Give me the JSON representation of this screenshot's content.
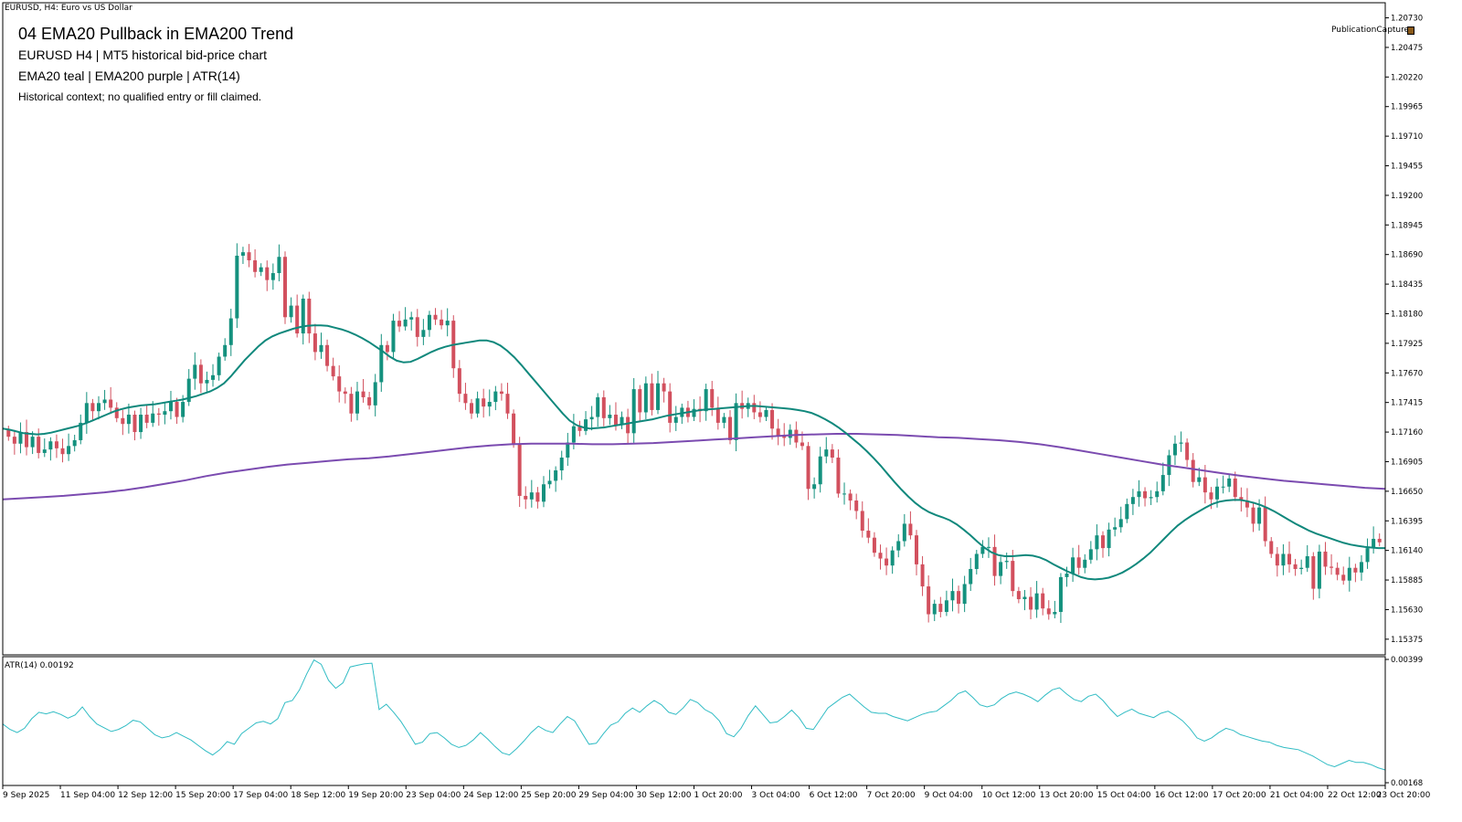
{
  "window": {
    "title": "EURUSD, H4:  Euro vs US Dollar"
  },
  "annotations": {
    "title": "04  EMA20 Pullback in EMA200 Trend",
    "subtitle": "EURUSD  H4  |  MT5 historical bid-price chart",
    "legend": "EMA20 teal | EMA200 purple | ATR(14)",
    "note": "Historical context; no qualified entry or fill claimed."
  },
  "publication": {
    "label": "PublicationCapture",
    "icon": "capture-icon"
  },
  "colors": {
    "bull": "#14917e",
    "bear": "#d2505e",
    "ema20": "#10887c",
    "ema200": "#7b4bb0",
    "atr": "#30bcc4"
  },
  "chart_data": [
    {
      "type": "candlestick",
      "symbol": "EURUSD",
      "timeframe": "H4",
      "ylim": [
        1.1524,
        1.2086
      ],
      "y_ticks": [
        "1.20730",
        "1.20475",
        "1.20220",
        "1.19965",
        "1.19710",
        "1.19455",
        "1.19200",
        "1.18945",
        "1.18690",
        "1.18435",
        "1.18180",
        "1.17925",
        "1.17670",
        "1.17415",
        "1.17160",
        "1.16905",
        "1.16650",
        "1.16395",
        "1.16140",
        "1.15885",
        "1.15630",
        "1.15375"
      ],
      "x_ticks": [
        "9 Sep 2025",
        "11 Sep 04:00",
        "12 Sep 12:00",
        "15 Sep 20:00",
        "17 Sep 04:00",
        "18 Sep 12:00",
        "19 Sep 20:00",
        "23 Sep 04:00",
        "24 Sep 12:00",
        "25 Sep 20:00",
        "29 Sep 04:00",
        "30 Sep 12:00",
        "1 Oct 20:00",
        "3 Oct 04:00",
        "6 Oct 12:00",
        "7 Oct 20:00",
        "9 Oct 04:00",
        "10 Oct 12:00",
        "13 Oct 20:00",
        "15 Oct 04:00",
        "16 Oct 12:00",
        "17 Oct 20:00",
        "21 Oct 04:00",
        "22 Oct 12:00",
        "23 Oct 20:00"
      ],
      "candle_spacing_bars": 4,
      "closes": [
        1.1712,
        1.1706,
        1.1716,
        1.1703,
        1.1712,
        1.1698,
        1.1701,
        1.1708,
        1.1702,
        1.1697,
        1.1704,
        1.1709,
        1.1724,
        1.1741,
        1.1734,
        1.1741,
        1.1744,
        1.1737,
        1.1728,
        1.1723,
        1.1731,
        1.1716,
        1.1731,
        1.1724,
        1.1732,
        1.1731,
        1.1734,
        1.1742,
        1.1729,
        1.1742,
        1.1762,
        1.1774,
        1.1758,
        1.1761,
        1.1765,
        1.1781,
        1.1791,
        1.1814,
        1.1868,
        1.1871,
        1.1864,
        1.1854,
        1.1858,
        1.1847,
        1.1853,
        1.1867,
        1.1815,
        1.1825,
        1.1801,
        1.1831,
        1.1801,
        1.1785,
        1.1791,
        1.1773,
        1.1764,
        1.1751,
        1.1749,
        1.1732,
        1.1751,
        1.1746,
        1.1739,
        1.1759,
        1.1791,
        1.1785,
        1.1812,
        1.1807,
        1.1813,
        1.1815,
        1.1798,
        1.1804,
        1.1817,
        1.1813,
        1.1808,
        1.1812,
        1.1771,
        1.1749,
        1.1741,
        1.1732,
        1.1745,
        1.1738,
        1.1742,
        1.1751,
        1.1749,
        1.1732,
        1.1706,
        1.1661,
        1.1658,
        1.1664,
        1.1656,
        1.1671,
        1.1674,
        1.1683,
        1.1694,
        1.1707,
        1.1721,
        1.1717,
        1.1727,
        1.1729,
        1.1746,
        1.1728,
        1.1731,
        1.1722,
        1.1729,
        1.1715,
        1.1753,
        1.1733,
        1.1758,
        1.1735,
        1.1758,
        1.1751,
        1.1724,
        1.1729,
        1.1737,
        1.1729,
        1.1736,
        1.1734,
        1.1753,
        1.1737,
        1.1724,
        1.1729,
        1.1709,
        1.1741,
        1.1736,
        1.1741,
        1.1733,
        1.1729,
        1.1735,
        1.1719,
        1.1713,
        1.1711,
        1.1718,
        1.1707,
        1.1704,
        1.1667,
        1.1671,
        1.1695,
        1.1701,
        1.1694,
        1.1663,
        1.1663,
        1.1657,
        1.1648,
        1.1631,
        1.1625,
        1.1612,
        1.1607,
        1.1601,
        1.1614,
        1.1622,
        1.1637,
        1.1627,
        1.1602,
        1.1583,
        1.1559,
        1.1568,
        1.1561,
        1.1571,
        1.1579,
        1.1568,
        1.1585,
        1.1598,
        1.1611,
        1.1617,
        1.1617,
        1.1592,
        1.1604,
        1.1605,
        1.1579,
        1.1572,
        1.1574,
        1.1563,
        1.1577,
        1.1564,
        1.1559,
        1.1561,
        1.1591,
        1.1594,
        1.1608,
        1.1599,
        1.1606,
        1.1615,
        1.1627,
        1.1616,
        1.1632,
        1.1634,
        1.1641,
        1.1654,
        1.166,
        1.1665,
        1.1659,
        1.166,
        1.1665,
        1.1679,
        1.1696,
        1.1706,
        1.1707,
        1.1692,
        1.1673,
        1.1677,
        1.1664,
        1.1658,
        1.1669,
        1.1669,
        1.1676,
        1.166,
        1.1657,
        1.1651,
        1.1637,
        1.1651,
        1.1622,
        1.1611,
        1.1601,
        1.1611,
        1.1602,
        1.1598,
        1.1599,
        1.1609,
        1.1581,
        1.1613,
        1.16,
        1.1599,
        1.1593,
        1.1588,
        1.1599,
        1.1595,
        1.1604,
        1.1616,
        1.1624,
        1.1621
      ],
      "ema20_approx": [
        1.1719,
        1.1718,
        1.17165,
        1.1715,
        1.17145,
        1.1714,
        1.17145,
        1.17155,
        1.1717,
        1.17185,
        1.172,
        1.17215,
        1.17235,
        1.1726,
        1.17285,
        1.1731,
        1.17335,
        1.17355,
        1.1737,
        1.1738,
        1.1739,
        1.17395,
        1.174,
        1.1741,
        1.1742,
        1.1743,
        1.1744,
        1.17455,
        1.1747,
        1.1749,
        1.1751,
        1.1754,
        1.1758,
        1.1764,
        1.1771,
        1.1778,
        1.1784,
        1.179,
        1.1795,
        1.17985,
        1.1801,
        1.1803,
        1.1805,
        1.18065,
        1.18075,
        1.1808,
        1.1808,
        1.18075,
        1.1806,
        1.18045,
        1.18025,
        1.18,
        1.1797,
        1.17935,
        1.17895,
        1.17855,
        1.1781,
        1.17775,
        1.1776,
        1.17765,
        1.1779,
        1.1782,
        1.1785,
        1.17875,
        1.17895,
        1.1791,
        1.1792,
        1.1793,
        1.1794,
        1.1795,
        1.1795,
        1.17935,
        1.17905,
        1.1786,
        1.17805,
        1.1774,
        1.1767,
        1.176,
        1.1753,
        1.1746,
        1.1739,
        1.1732,
        1.1726,
        1.1722,
        1.172,
        1.1719,
        1.17195,
        1.172,
        1.1721,
        1.1722,
        1.1723,
        1.1724,
        1.1725,
        1.1726,
        1.1727,
        1.17285,
        1.173,
        1.1731,
        1.1732,
        1.1733,
        1.1734,
        1.1735,
        1.17355,
        1.1736,
        1.17365,
        1.1737,
        1.17375,
        1.1738,
        1.17385,
        1.17385,
        1.1738,
        1.17375,
        1.1737,
        1.17365,
        1.1736,
        1.1735,
        1.1734,
        1.17325,
        1.173,
        1.1727,
        1.17235,
        1.17195,
        1.1715,
        1.171,
        1.1705,
        1.16995,
        1.16935,
        1.1687,
        1.168,
        1.1673,
        1.16665,
        1.16605,
        1.1655,
        1.16505,
        1.1647,
        1.16445,
        1.16425,
        1.164,
        1.16365,
        1.1632,
        1.1627,
        1.16215,
        1.16165,
        1.16125,
        1.161,
        1.1609,
        1.1609,
        1.16095,
        1.161,
        1.16095,
        1.1608,
        1.16055,
        1.1602,
        1.1599,
        1.1596,
        1.15935,
        1.1591,
        1.15895,
        1.1589,
        1.15895,
        1.15905,
        1.15925,
        1.1595,
        1.15985,
        1.16025,
        1.1607,
        1.1612,
        1.1618,
        1.1624,
        1.163,
        1.16355,
        1.164,
        1.1644,
        1.16475,
        1.1651,
        1.1654,
        1.1656,
        1.1657,
        1.16575,
        1.16575,
        1.16565,
        1.1655,
        1.1653,
        1.16505,
        1.16475,
        1.1644,
        1.16405,
        1.1637,
        1.1634,
        1.1631,
        1.16285,
        1.16265,
        1.16245,
        1.16225,
        1.16205,
        1.1619,
        1.1618,
        1.1617,
        1.16165,
        1.1616,
        1.1616
      ],
      "ema200_approx": [
        1.1658,
        1.1659,
        1.166,
        1.1661,
        1.16625,
        1.1664,
        1.1666,
        1.16685,
        1.16715,
        1.16745,
        1.1678,
        1.1681,
        1.16835,
        1.1686,
        1.1688,
        1.16895,
        1.1691,
        1.16925,
        1.16935,
        1.1695,
        1.1697,
        1.1699,
        1.1701,
        1.1703,
        1.17045,
        1.17055,
        1.1706,
        1.1706,
        1.1706,
        1.17055,
        1.17055,
        1.1706,
        1.17065,
        1.17075,
        1.17085,
        1.17095,
        1.17105,
        1.17115,
        1.17125,
        1.17135,
        1.1714,
        1.17145,
        1.17145,
        1.1714,
        1.17135,
        1.17125,
        1.17115,
        1.1711,
        1.171,
        1.1709,
        1.17075,
        1.17055,
        1.1703,
        1.17,
        1.1697,
        1.1694,
        1.1691,
        1.1688,
        1.16855,
        1.1683,
        1.16805,
        1.1678,
        1.1676,
        1.1674,
        1.16725,
        1.1671,
        1.16695,
        1.1668,
        1.1667
      ]
    },
    {
      "type": "line",
      "name": "ATR(14)",
      "current_value": "0.00192",
      "ylim": [
        0.00168,
        0.00399
      ],
      "y_ticks": [
        "0.00399",
        "0.00168"
      ],
      "values": [
        0.00278,
        0.00268,
        0.00262,
        0.0027,
        0.00288,
        0.003,
        0.00297,
        0.00301,
        0.00296,
        0.00289,
        0.00295,
        0.0031,
        0.00292,
        0.00278,
        0.00271,
        0.00264,
        0.00268,
        0.00275,
        0.00285,
        0.00282,
        0.0027,
        0.00258,
        0.00252,
        0.00255,
        0.00262,
        0.00255,
        0.00248,
        0.00238,
        0.00228,
        0.0022,
        0.0023,
        0.00245,
        0.0024,
        0.0026,
        0.0027,
        0.0028,
        0.00283,
        0.00278,
        0.00288,
        0.00318,
        0.00322,
        0.00342,
        0.00372,
        0.00398,
        0.0039,
        0.0036,
        0.00345,
        0.00355,
        0.00385,
        0.00388,
        0.00391,
        0.00392,
        0.00305,
        0.00315,
        0.003,
        0.00283,
        0.00262,
        0.0024,
        0.00244,
        0.0026,
        0.00262,
        0.00252,
        0.0024,
        0.00234,
        0.00238,
        0.00248,
        0.00262,
        0.0025,
        0.00236,
        0.00224,
        0.0022,
        0.00232,
        0.00246,
        0.00262,
        0.00274,
        0.00266,
        0.00262,
        0.00278,
        0.00292,
        0.00284,
        0.00262,
        0.0024,
        0.00242,
        0.0026,
        0.00276,
        0.00282,
        0.00298,
        0.00308,
        0.003,
        0.00312,
        0.00322,
        0.00314,
        0.003,
        0.00296,
        0.00308,
        0.00324,
        0.00318,
        0.00305,
        0.00298,
        0.00284,
        0.0026,
        0.00254,
        0.0027,
        0.00294,
        0.00312,
        0.00296,
        0.0028,
        0.00282,
        0.00292,
        0.00304,
        0.0029,
        0.0027,
        0.00268,
        0.00288,
        0.00308,
        0.00318,
        0.00328,
        0.00334,
        0.00322,
        0.0031,
        0.003,
        0.00298,
        0.00298,
        0.00292,
        0.00288,
        0.00284,
        0.0029,
        0.00296,
        0.003,
        0.00302,
        0.00312,
        0.00322,
        0.00335,
        0.0034,
        0.00328,
        0.00314,
        0.0031,
        0.00314,
        0.00326,
        0.00334,
        0.00338,
        0.00334,
        0.00328,
        0.0032,
        0.00332,
        0.00342,
        0.00346,
        0.00334,
        0.00324,
        0.0032,
        0.0033,
        0.00334,
        0.00322,
        0.00306,
        0.00292,
        0.003,
        0.00306,
        0.00298,
        0.00294,
        0.0029,
        0.00298,
        0.00302,
        0.00294,
        0.00284,
        0.0027,
        0.00252,
        0.00246,
        0.00252,
        0.00262,
        0.0027,
        0.00266,
        0.00258,
        0.00254,
        0.0025,
        0.00246,
        0.00244,
        0.00238,
        0.00234,
        0.00232,
        0.0023,
        0.00224,
        0.00218,
        0.0021,
        0.00202,
        0.00198,
        0.00204,
        0.0021,
        0.00206,
        0.00206,
        0.00202,
        0.00196,
        0.00192
      ]
    }
  ]
}
